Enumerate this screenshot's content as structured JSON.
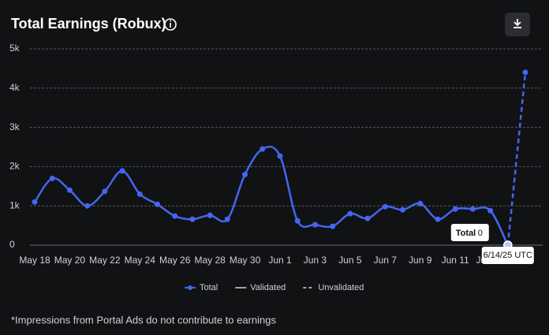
{
  "chart_data": {
    "type": "line",
    "title": "Total Earnings (Robux)",
    "footnote": "*Impressions from Portal Ads do not contribute to earnings",
    "categories": [
      "May 18",
      null,
      "May 20",
      null,
      "May 22",
      null,
      "May 24",
      null,
      "May 26",
      null,
      "May 28",
      null,
      "May 30",
      null,
      "Jun 1",
      null,
      "Jun 3",
      null,
      "Jun 5",
      null,
      "Jun 7",
      null,
      "Jun 9",
      null,
      "Jun 11",
      null,
      "Jun 13",
      null,
      null
    ],
    "series": [
      {
        "name": "Total",
        "color": "#4466f0",
        "style": "solid",
        "values": [
          1100,
          1700,
          1400,
          1000,
          1370,
          1890,
          1300,
          1040,
          740,
          660,
          760,
          660,
          1800,
          2450,
          2270,
          620,
          520,
          480,
          800,
          680,
          980,
          900,
          1060,
          660,
          920,
          920,
          880,
          0,
          null
        ]
      },
      {
        "name": "Validated",
        "color": "#a0a3a8",
        "style": "solid",
        "values": [
          null,
          null,
          null,
          null,
          null,
          null,
          null,
          null,
          null,
          null,
          null,
          null,
          null,
          null,
          null,
          null,
          null,
          null,
          null,
          null,
          null,
          null,
          null,
          null,
          null,
          null,
          null,
          null,
          null
        ]
      },
      {
        "name": "Unvalidated",
        "color": "#4466f0",
        "style": "dashed",
        "values": [
          null,
          null,
          null,
          null,
          null,
          null,
          null,
          null,
          null,
          null,
          null,
          null,
          null,
          null,
          null,
          null,
          null,
          null,
          null,
          null,
          null,
          null,
          null,
          null,
          null,
          null,
          null,
          0,
          4400
        ]
      }
    ],
    "ylim": [
      0,
      5000
    ],
    "yticks": [
      0,
      {
        "value": 1000,
        "label": "1k"
      },
      {
        "value": 2000,
        "label": "2k"
      },
      {
        "value": 3000,
        "label": "3k"
      },
      {
        "value": 4000,
        "label": "4k"
      },
      {
        "value": 5000,
        "label": "5k"
      }
    ],
    "grid": true,
    "legend": "bottom",
    "tooltip": {
      "label": "Total",
      "value": 0,
      "date": "6/14/25 UTC",
      "index": 27
    }
  }
}
